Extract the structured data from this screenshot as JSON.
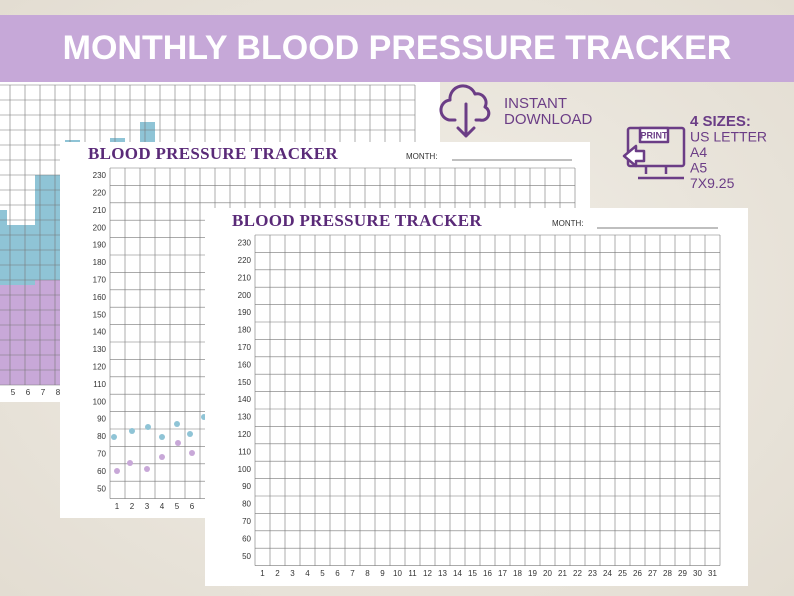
{
  "header": {
    "title": "MONTHLY BLOOD PRESSURE TRACKER"
  },
  "download": {
    "lines": [
      "INSTANT",
      "DOWNLOAD"
    ]
  },
  "print": {
    "icon_label": "PRINT",
    "heading": "4 SIZES:",
    "sizes": [
      "US LETTER",
      "A4",
      "A5",
      "7X9.25"
    ]
  },
  "sheets": {
    "back": {
      "x_labels": [
        5,
        6,
        7,
        8
      ]
    },
    "middle": {
      "title": "BLOOD PRESSURE TRACKER",
      "month_label": "MONTH:",
      "y_labels": [
        230,
        220,
        210,
        200,
        190,
        180,
        170,
        160,
        150,
        140,
        130,
        120,
        110,
        100,
        90,
        80,
        70,
        60,
        50
      ],
      "x_labels": [
        1,
        2,
        3,
        4,
        5,
        6
      ]
    },
    "front": {
      "title": "BLOOD PRESSURE TRACKER",
      "month_label": "MONTH:",
      "y_labels": [
        230,
        220,
        210,
        200,
        190,
        180,
        170,
        160,
        150,
        140,
        130,
        120,
        110,
        100,
        90,
        80,
        70,
        60,
        50
      ],
      "x_labels": [
        1,
        2,
        3,
        4,
        5,
        6,
        7,
        8,
        9,
        10,
        11,
        12,
        13,
        14,
        15,
        16,
        17,
        18,
        19,
        20,
        21,
        22,
        23,
        24,
        25,
        26,
        27,
        28,
        29,
        30,
        31
      ]
    }
  }
}
